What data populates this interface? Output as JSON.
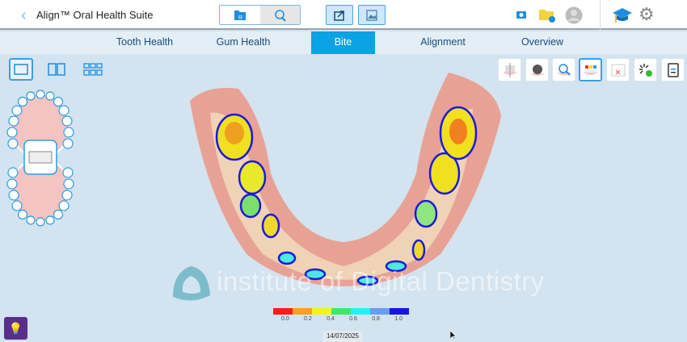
{
  "header": {
    "title": "Align™ Oral Health Suite",
    "back_icon": "chevron-left-icon"
  },
  "tabs": [
    {
      "label": "Tooth Health"
    },
    {
      "label": "Gum Health"
    },
    {
      "label": "Bite",
      "active": true
    },
    {
      "label": "Alignment"
    },
    {
      "label": "Overview"
    }
  ],
  "legend": {
    "ticks": [
      "0.0",
      "0.2",
      "0.4",
      "0.6",
      "0.8",
      "1.0"
    ],
    "colors": [
      "#ff1a1a",
      "#ffa020",
      "#f4f41a",
      "#3ee86a",
      "#22f2f2",
      "#6a9cf0",
      "#1414e6"
    ]
  },
  "watermark": "institute of Digital Dentistry",
  "date": "14/07/2025",
  "colors": {
    "accent": "#0aa3e4",
    "background": "#d3e3ef"
  }
}
